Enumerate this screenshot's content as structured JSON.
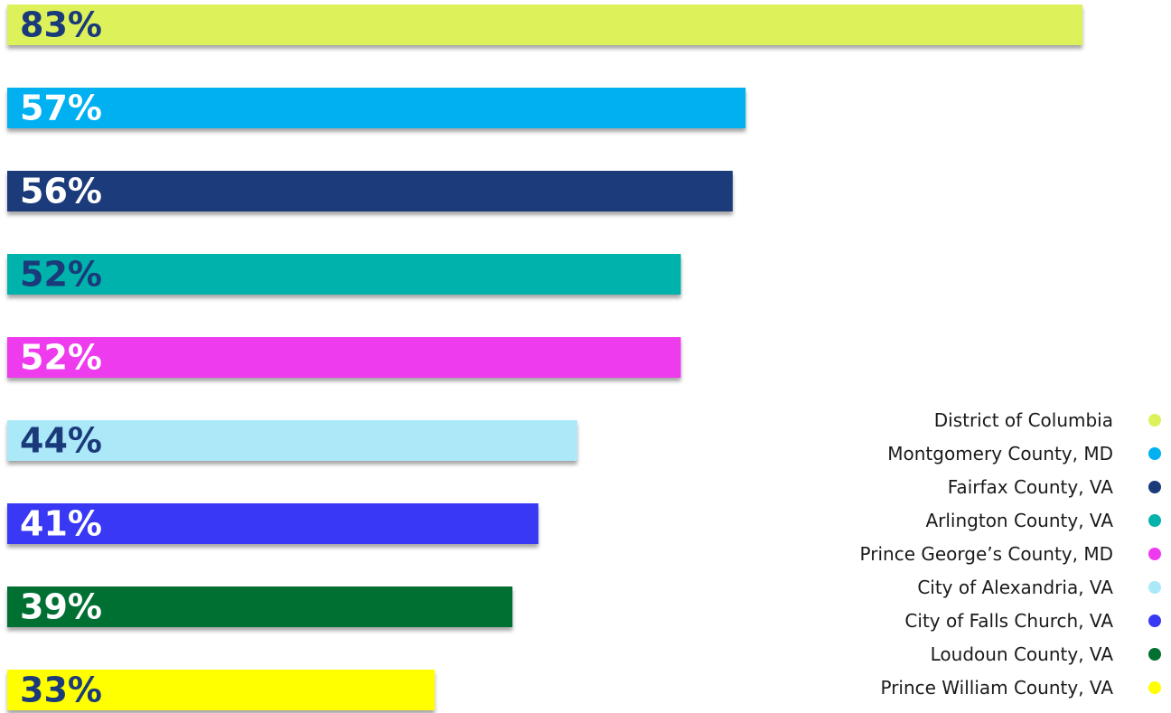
{
  "chart_data": {
    "type": "bar",
    "orientation": "horizontal",
    "categories": [
      "District of Columbia",
      "Montgomery County, MD",
      "Fairfax County, VA",
      "Arlington County, VA",
      "Prince George’s County, MD",
      "City of Alexandria, VA",
      "City of Falls Church, VA",
      "Loudoun County, VA",
      "Prince William County, VA"
    ],
    "values": [
      83,
      57,
      56,
      52,
      52,
      44,
      41,
      39,
      33
    ],
    "value_labels": [
      "83%",
      "57%",
      "56%",
      "52%",
      "52%",
      "44%",
      "41%",
      "39%",
      "33%"
    ],
    "colors": [
      "#DDF25A",
      "#00B0F0",
      "#1B3A7A",
      "#05B2AC",
      "#EE3AEE",
      "#ABE8F8",
      "#3838F5",
      "#037032",
      "#FFFF00"
    ],
    "label_colors": [
      "#1B3A7A",
      "#FFFFFF",
      "#FFFFFF",
      "#1B3A7A",
      "#FFFFFF",
      "#1B3A7A",
      "#FFFFFF",
      "#FFFFFF",
      "#1B3A7A"
    ],
    "title": "",
    "xlabel": "",
    "ylabel": "",
    "xlim": [
      0,
      100
    ],
    "grid": false,
    "legend_position": "bottom-right"
  }
}
